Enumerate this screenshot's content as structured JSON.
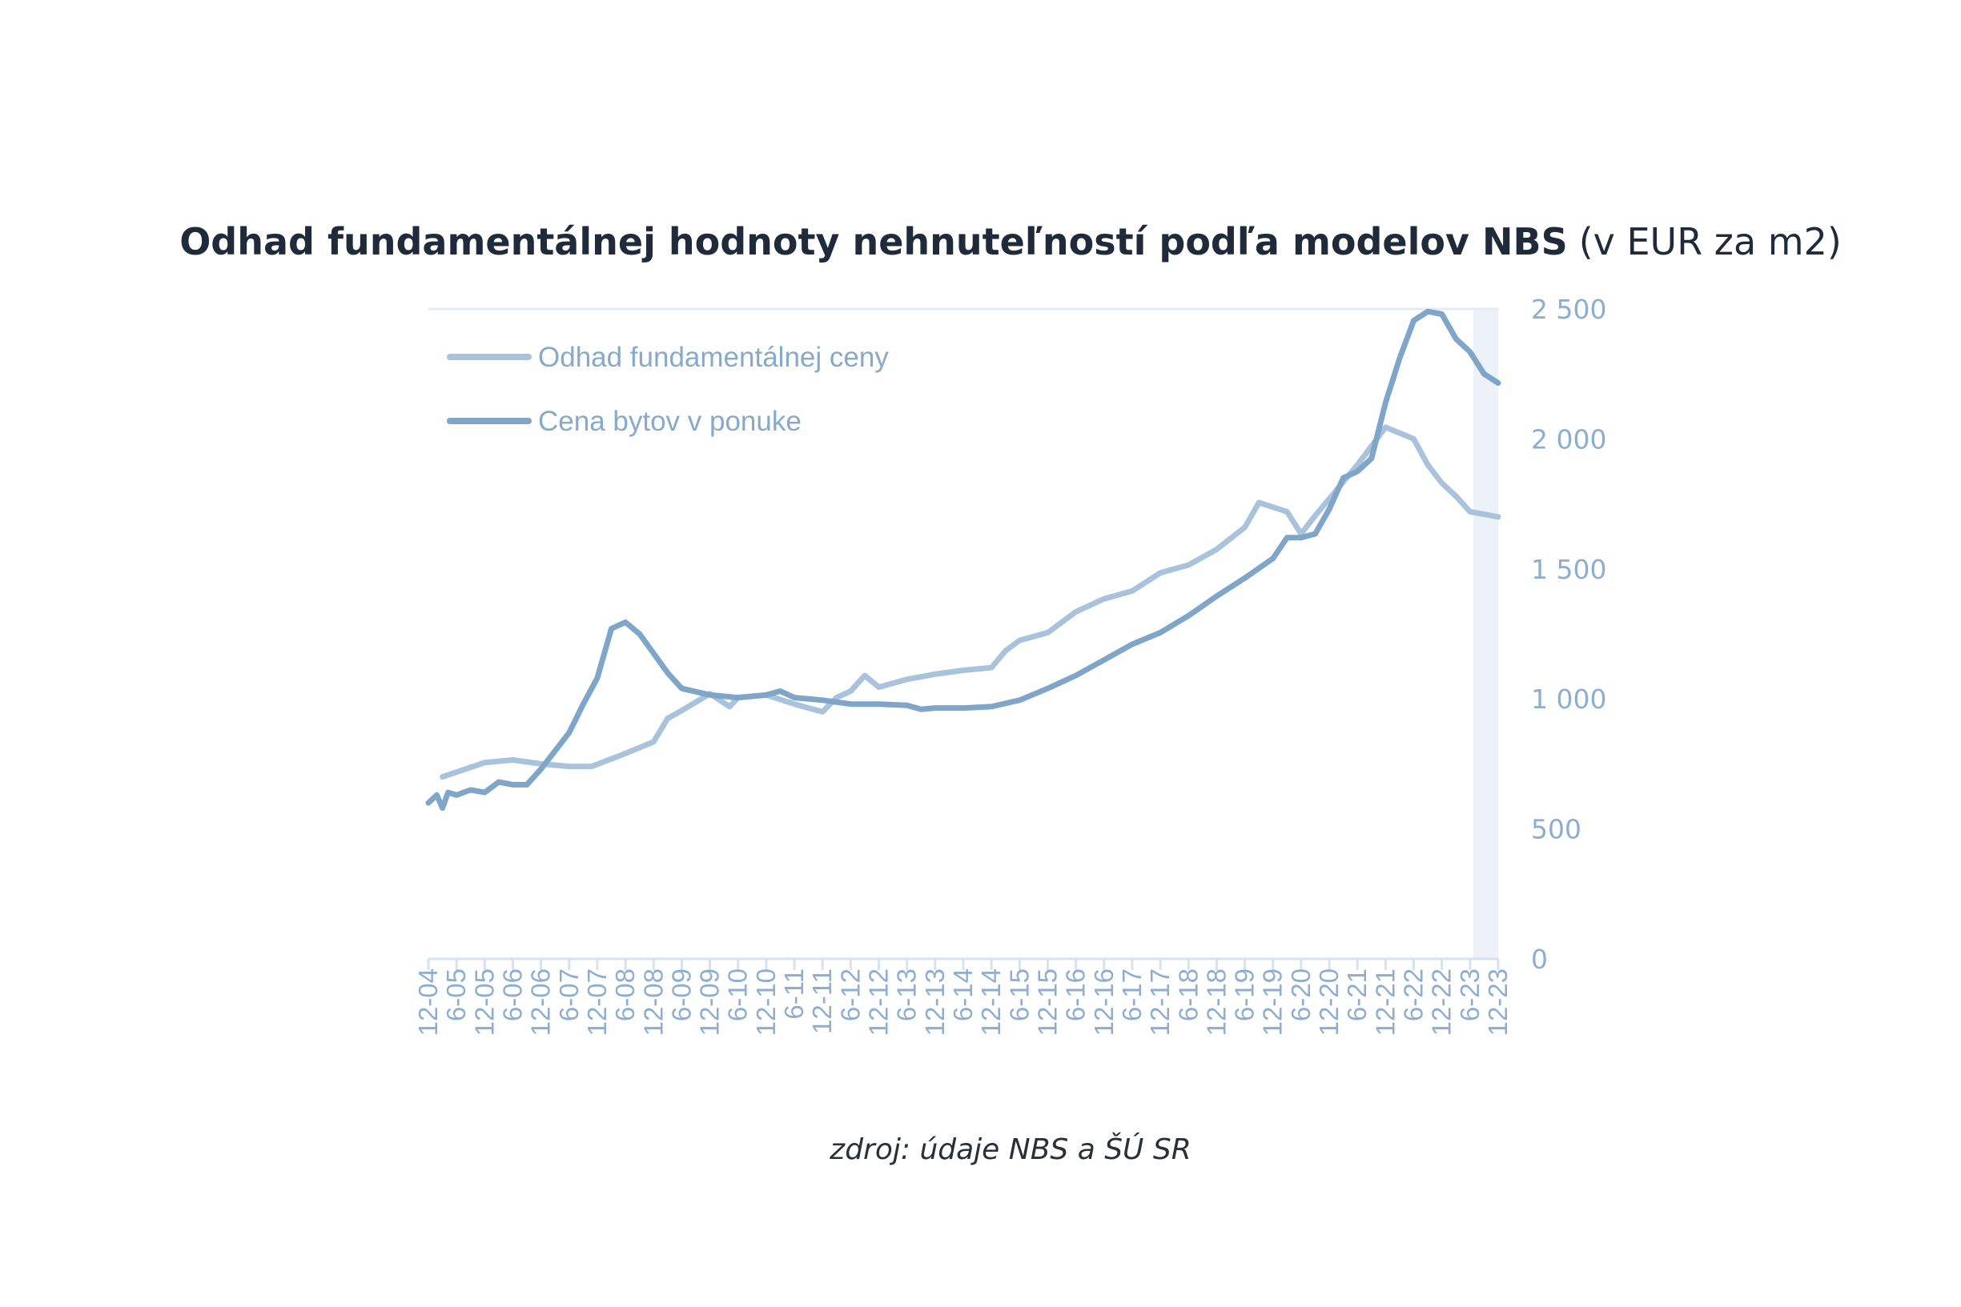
{
  "chart_data": {
    "type": "line",
    "title_bold": "Odhad fundamentálnej hodnoty nehnuteľností podľa modelov NBS",
    "title_regular": "(v EUR za m2)",
    "source": "zdroj: údaje NBS a ŠÚ SR",
    "xlabel": "",
    "ylabel": "",
    "ylim": [
      0,
      2500
    ],
    "yticks": [
      0,
      500,
      1000,
      1500,
      2000,
      2500
    ],
    "ytick_labels": [
      "0",
      "500",
      "1 000",
      "1 500",
      "2 000",
      "2 500"
    ],
    "y_axis_side": "right",
    "legend_position": "top-left",
    "x_tick_labels": [
      "12-04",
      "6-05",
      "12-05",
      "6-06",
      "12-06",
      "6-07",
      "12-07",
      "6-08",
      "12-08",
      "6-09",
      "12-09",
      "6-10",
      "12-10",
      "6-11",
      "12-11",
      "6-12",
      "12-12",
      "6-13",
      "12-13",
      "6-14",
      "12-14",
      "6-15",
      "12-15",
      "6-16",
      "12-16",
      "6-17",
      "12-17",
      "6-18",
      "12-18",
      "6-19",
      "12-19",
      "6-20",
      "12-20",
      "6-21",
      "12-21",
      "6-22",
      "12-22",
      "6-23",
      "12-23"
    ],
    "x_unit_note": "x is half-year index from 12-04 (0) to 12-23 (38)",
    "series": [
      {
        "name": "Odhad fundamentálnej ceny",
        "color": "#a9c3dc",
        "x": [
          0.5,
          2,
          3,
          4,
          5,
          5.8,
          7,
          8,
          8.5,
          9,
          10,
          10.7,
          11,
          12,
          13,
          14,
          14.5,
          15,
          15.5,
          16,
          17,
          18,
          19,
          20,
          20.5,
          21,
          22,
          23,
          24,
          25,
          26,
          27,
          28,
          29,
          29.5,
          30.5,
          31,
          31.5,
          32,
          33,
          34,
          35,
          35.5,
          36,
          36.5,
          37,
          38
        ],
        "y": [
          700,
          755,
          765,
          750,
          740,
          740,
          790,
          835,
          925,
          955,
          1020,
          970,
          1005,
          1015,
          980,
          950,
          1005,
          1030,
          1090,
          1045,
          1075,
          1095,
          1110,
          1120,
          1185,
          1225,
          1255,
          1335,
          1385,
          1415,
          1485,
          1515,
          1575,
          1660,
          1755,
          1720,
          1635,
          1705,
          1770,
          1900,
          2045,
          2000,
          1900,
          1830,
          1780,
          1720,
          1700
        ]
      },
      {
        "name": "Cena bytov v ponuke",
        "color": "#7fa5c8",
        "x": [
          0,
          0.3,
          0.5,
          0.7,
          1,
          1.5,
          2,
          2.5,
          3,
          3.5,
          4,
          4.5,
          5,
          5.5,
          6,
          6.5,
          7,
          7.5,
          8,
          8.5,
          9,
          10,
          11,
          12,
          12.5,
          13,
          14,
          15,
          16,
          17,
          17.5,
          18,
          19,
          20,
          21,
          22,
          23,
          24,
          25,
          26,
          27,
          28,
          29,
          30,
          30.5,
          31,
          31.5,
          32,
          32.5,
          33,
          33.5,
          34,
          34.5,
          35,
          35.5,
          36,
          36.5,
          37,
          37.5,
          38
        ],
        "y": [
          600,
          630,
          580,
          640,
          630,
          650,
          640,
          680,
          670,
          670,
          730,
          800,
          870,
          980,
          1080,
          1270,
          1295,
          1250,
          1175,
          1100,
          1040,
          1015,
          1005,
          1015,
          1030,
          1005,
          995,
          980,
          980,
          975,
          960,
          965,
          965,
          970,
          995,
          1040,
          1090,
          1150,
          1210,
          1255,
          1320,
          1395,
          1465,
          1540,
          1620,
          1620,
          1635,
          1730,
          1850,
          1875,
          1925,
          2140,
          2310,
          2455,
          2490,
          2480,
          2385,
          2335,
          2250,
          2215
        ]
      }
    ]
  }
}
